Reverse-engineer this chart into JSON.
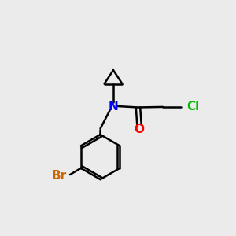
{
  "background_color": "#ebebeb",
  "atom_colors": {
    "N": "#0000ff",
    "O": "#ff0000",
    "Cl": "#00bb00",
    "Br": "#cc6600",
    "C": "#000000"
  },
  "bond_color": "#000000",
  "bond_width": 1.8,
  "font_size": 11,
  "figsize": [
    3.0,
    3.0
  ],
  "dpi": 100,
  "xlim": [
    0,
    10
  ],
  "ylim": [
    0,
    10
  ]
}
